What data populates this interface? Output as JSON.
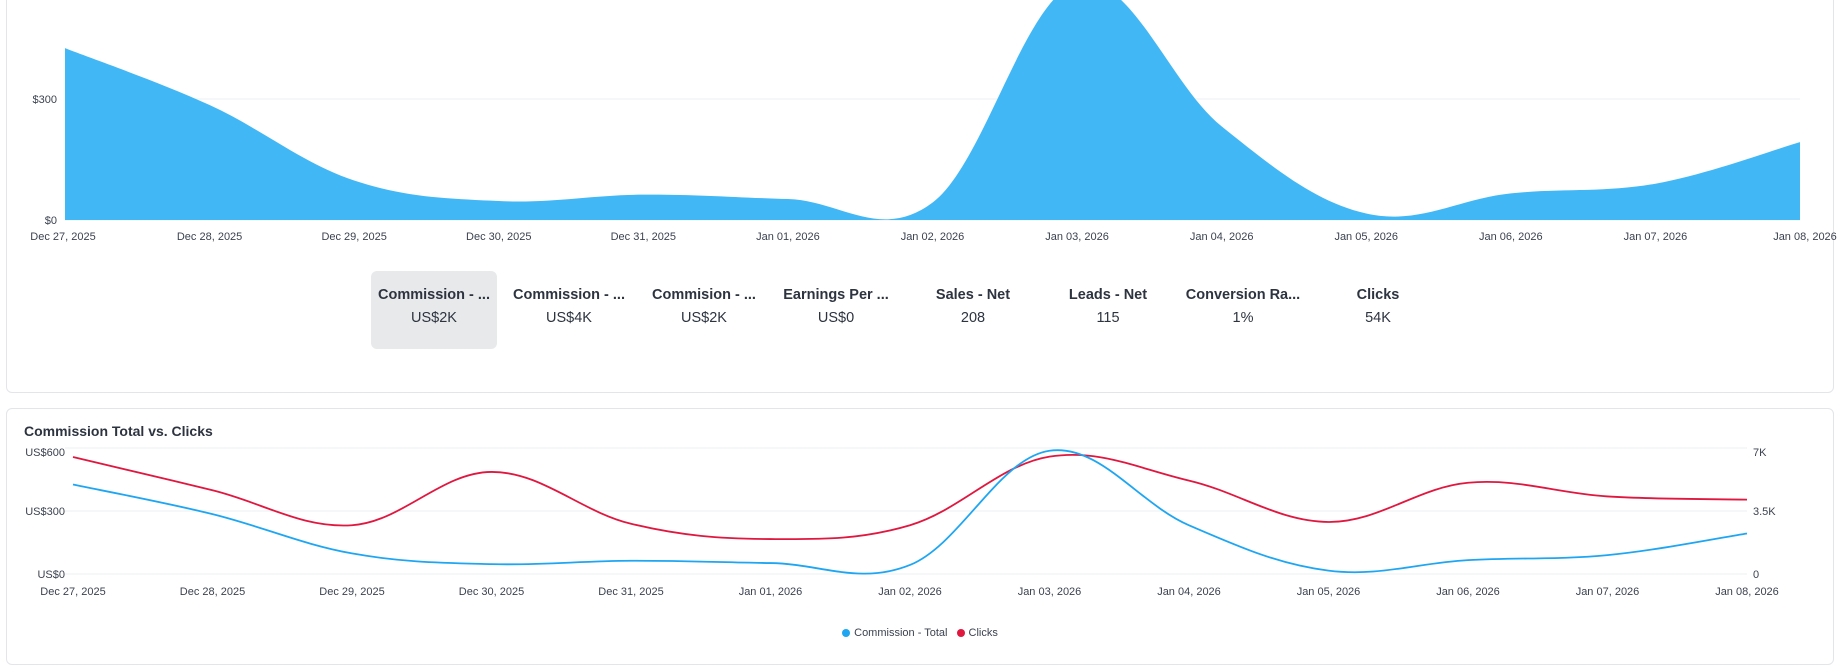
{
  "colors": {
    "commission": "#42b7f5",
    "commission_line": "#1ea6f2",
    "clicks": "#e0173f",
    "grid": "#eeeff1"
  },
  "metrics": [
    {
      "label": "Commission - ...",
      "value": "US$2K",
      "selected": true
    },
    {
      "label": "Commission - ...",
      "value": "US$4K"
    },
    {
      "label": "Commision - ...",
      "value": "US$2K"
    },
    {
      "label": "Earnings Per ...",
      "value": "US$0"
    },
    {
      "label": "Sales - Net",
      "value": "208"
    },
    {
      "label": "Leads - Net",
      "value": "115"
    },
    {
      "label": "Conversion Ra...",
      "value": "1%"
    },
    {
      "label": "Clicks",
      "value": "54K"
    }
  ],
  "chart_data": [
    {
      "type": "area",
      "categories": [
        "Dec 27, 2025",
        "Dec 28, 2025",
        "Dec 29, 2025",
        "Dec 30, 2025",
        "Dec 31, 2025",
        "Jan 01, 2026",
        "Jan 02, 2026",
        "Jan 03, 2026",
        "Jan 04, 2026",
        "Jan 05, 2026",
        "Jan 06, 2026",
        "Jan 07, 2026",
        "Jan 08, 2026"
      ],
      "values": [
        426,
        285,
        98,
        47,
        63,
        52,
        43,
        587,
        232,
        16,
        66,
        90,
        193
      ],
      "yticks": [
        "$0",
        "$300"
      ],
      "ytick_values": [
        0,
        300
      ],
      "ylim": [
        0,
        300
      ],
      "grid": true
    },
    {
      "type": "line",
      "title": "Commission Total vs. Clicks",
      "categories": [
        "Dec 27, 2025",
        "Dec 28, 2025",
        "Dec 29, 2025",
        "Dec 30, 2025",
        "Dec 31, 2025",
        "Jan 01, 2026",
        "Jan 02, 2026",
        "Jan 03, 2026",
        "Jan 04, 2026",
        "Jan 05, 2026",
        "Jan 06, 2026",
        "Jan 07, 2026",
        "Jan 08, 2026"
      ],
      "series": [
        {
          "name": "Commission - Total",
          "axis": "left",
          "values": [
            426,
            285,
            98,
            47,
            63,
            52,
            43,
            587,
            232,
            16,
            66,
            90,
            193
          ]
        },
        {
          "name": "Clicks",
          "axis": "right",
          "values": [
            6500,
            4650,
            2710,
            5670,
            2790,
            1940,
            2710,
            6520,
            5190,
            2890,
            5070,
            4310,
            4130
          ]
        }
      ],
      "yticks_left": [
        "US$0",
        "US$300",
        "US$600"
      ],
      "yticks_right": [
        "0",
        "3.5K",
        "7K"
      ],
      "ylim_left": [
        0,
        600
      ],
      "ylim_right": [
        0,
        7000
      ],
      "grid": true,
      "legend": "bottom"
    }
  ]
}
